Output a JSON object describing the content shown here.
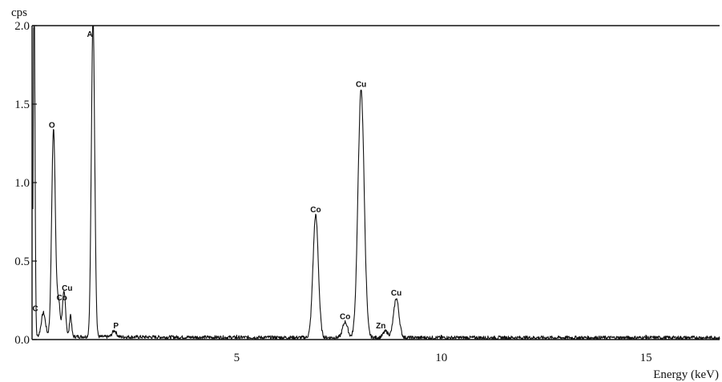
{
  "chart_data": {
    "type": "line",
    "title": "",
    "xlabel": "Energy (keV)",
    "ylabel": "cps",
    "xlim": [
      0,
      16.8
    ],
    "ylim": [
      0,
      2.0
    ],
    "x_ticks": [
      5,
      10,
      15
    ],
    "x_tick_labels": [
      "5",
      "10",
      "15"
    ],
    "y_ticks": [
      0,
      0.5,
      1.0,
      1.5,
      2.0
    ],
    "y_tick_labels": [
      "0.0",
      "0.5",
      "1.0",
      "1.5",
      "2.0"
    ],
    "grid": false,
    "line_color": "#111111",
    "peaks": [
      {
        "label": "C",
        "energy": 0.277,
        "height": 0.15,
        "width": 0.05
      },
      {
        "label": "O",
        "energy": 0.525,
        "height": 1.32,
        "width": 0.045
      },
      {
        "label": "Co",
        "energy": 0.65,
        "height": 0.22,
        "width": 0.035
      },
      {
        "label": "Cu",
        "energy": 0.78,
        "height": 0.28,
        "width": 0.04
      },
      {
        "label": "",
        "energy": 0.94,
        "height": 0.14,
        "width": 0.025
      },
      {
        "label": "A",
        "energy": 1.49,
        "height": 2.05,
        "width": 0.04
      },
      {
        "label": "P",
        "energy": 2.01,
        "height": 0.04,
        "width": 0.05
      },
      {
        "label": "Co",
        "energy": 6.93,
        "height": 0.78,
        "width": 0.065
      },
      {
        "label": "Co",
        "energy": 7.65,
        "height": 0.1,
        "width": 0.06
      },
      {
        "label": "Cu",
        "energy": 8.04,
        "height": 1.58,
        "width": 0.075
      },
      {
        "label": "Zn",
        "energy": 8.64,
        "height": 0.04,
        "width": 0.06
      },
      {
        "label": "Cu",
        "energy": 8.9,
        "height": 0.25,
        "width": 0.065
      }
    ]
  }
}
